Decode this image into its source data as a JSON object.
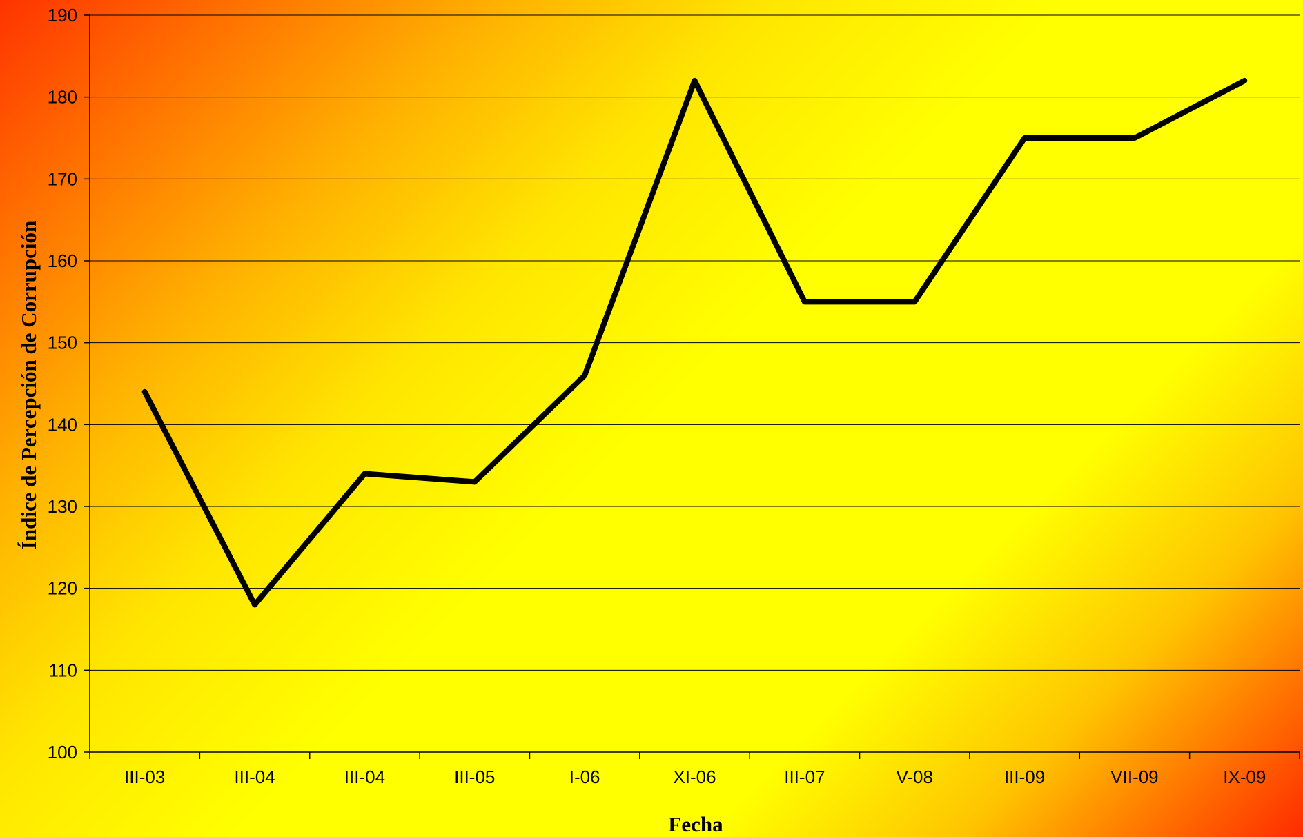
{
  "chart_data": {
    "type": "line",
    "xlabel": "Fecha",
    "ylabel": "Índice de Percepción de Corrupción",
    "categories": [
      "III-03",
      "III-04",
      "III-04",
      "III-05",
      "I-06",
      "XI-06",
      "III-07",
      "V-08",
      "III-09",
      "VII-09",
      "IX-09"
    ],
    "series": [
      {
        "values": [
          144,
          118,
          134,
          133,
          146,
          182,
          155,
          155,
          175,
          175,
          182
        ]
      }
    ],
    "ylim": [
      100,
      190
    ],
    "yticks": [
      100,
      110,
      120,
      130,
      140,
      150,
      160,
      170,
      180,
      190
    ],
    "grid": true,
    "legend": "none",
    "colors": {
      "line": "#000000",
      "gridline": "#000000",
      "background_warm": "#ff3300",
      "background_light": "#ffff00"
    }
  }
}
